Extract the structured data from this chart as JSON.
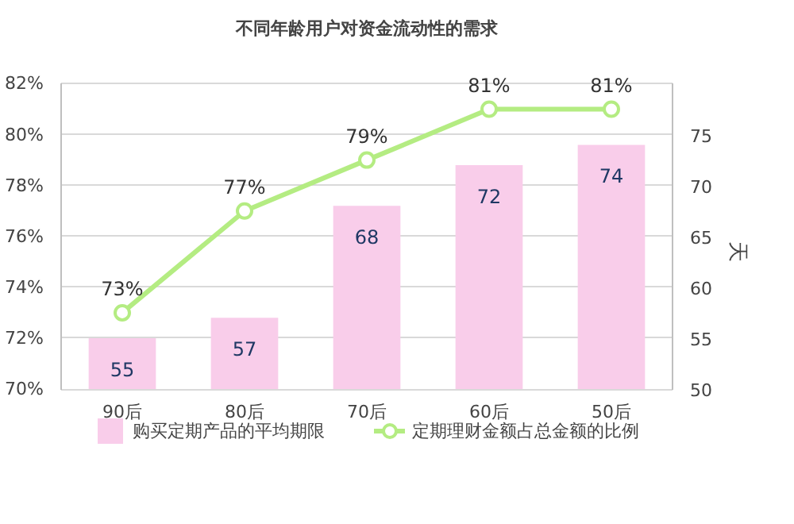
{
  "chart_data": {
    "type": "bar",
    "title": "不同年龄用户对资金流动性的需求",
    "categories": [
      "90后",
      "80后",
      "70后",
      "60后",
      "50后"
    ],
    "series": [
      {
        "name": "购买定期产品的平均期限",
        "type": "bar",
        "axis": "y2",
        "color": "#f9cdea",
        "values": [
          55,
          57,
          68,
          72,
          74
        ],
        "value_labels": [
          "55",
          "57",
          "68",
          "72",
          "74"
        ]
      },
      {
        "name": "定期理财金额占总金额的比例",
        "type": "line",
        "axis": "y",
        "color": "#b4ec82",
        "values": [
          73,
          77,
          79,
          81,
          81
        ],
        "value_labels": [
          "73%",
          "77%",
          "79%",
          "81%",
          "81%"
        ],
        "marker": "circle",
        "line_style": "solid"
      }
    ],
    "ylim": [
      70,
      82
    ],
    "yticks": [
      {
        "value": 70,
        "label": "70%"
      },
      {
        "value": 72,
        "label": "72%"
      },
      {
        "value": 74,
        "label": "74%"
      },
      {
        "value": 76,
        "label": "76%"
      },
      {
        "value": 78,
        "label": "78%"
      },
      {
        "value": 80,
        "label": "80%"
      },
      {
        "value": 82,
        "label": "82%"
      }
    ],
    "y2lim": [
      50,
      80
    ],
    "y2ticks": [
      50,
      55,
      60,
      65,
      70,
      75
    ],
    "y2label": "天",
    "grid": "y",
    "legend": "bottom"
  }
}
